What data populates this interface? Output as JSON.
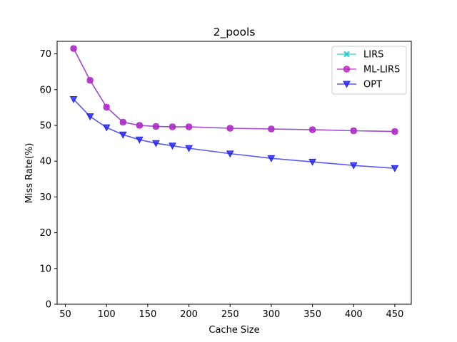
{
  "chart_data": {
    "type": "line",
    "title": "2_pools",
    "xlabel": "Cache Size",
    "ylabel": "Miss Rate(%)",
    "xlim": [
      40,
      470
    ],
    "ylim": [
      0,
      73.5
    ],
    "x_ticks": [
      50,
      100,
      150,
      200,
      250,
      300,
      350,
      400,
      450
    ],
    "y_ticks": [
      0,
      10,
      20,
      30,
      40,
      50,
      60,
      70
    ],
    "grid": false,
    "legend_position": "top-right",
    "x": [
      60,
      80,
      100,
      120,
      140,
      160,
      180,
      200,
      250,
      300,
      350,
      400,
      450
    ],
    "series": [
      {
        "name": "LIRS",
        "color": "#1ac9c9",
        "marker": "x",
        "values": [
          71.5,
          62.6,
          55.1,
          50.9,
          50.0,
          49.7,
          49.6,
          49.6,
          49.2,
          49.0,
          48.8,
          48.5,
          48.3
        ]
      },
      {
        "name": "ML-LIRS",
        "color": "#c21fc9",
        "marker": "circle",
        "values": [
          71.5,
          62.6,
          55.1,
          50.9,
          50.0,
          49.7,
          49.6,
          49.6,
          49.2,
          49.0,
          48.8,
          48.5,
          48.3
        ]
      },
      {
        "name": "OPT",
        "color": "#2121f0",
        "marker": "triangle-down",
        "values": [
          57.3,
          52.5,
          49.4,
          47.4,
          46.0,
          45.0,
          44.3,
          43.6,
          42.1,
          40.8,
          39.8,
          38.8,
          38.0
        ]
      }
    ]
  }
}
